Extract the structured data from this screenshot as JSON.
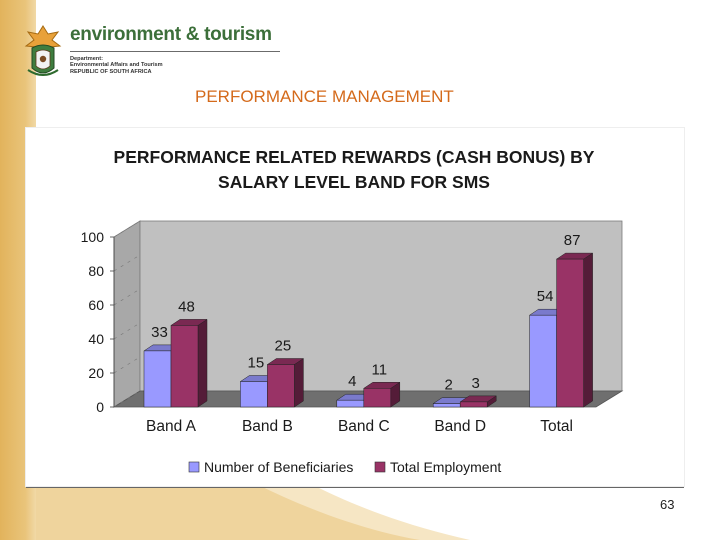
{
  "header": {
    "logo_title": "environment & tourism",
    "logo_lines": [
      "Department:",
      "Environmental Affairs and Tourism",
      "REPUBLIC OF SOUTH AFRICA"
    ],
    "slide_title": "PERFORMANCE MANAGEMENT"
  },
  "page_number": "63",
  "colors": {
    "series_1": "#9999ff",
    "series_2": "#993366",
    "plot_background": "#c0c0c0",
    "title_orange": "#d46a1b",
    "logo_green": "#3c6f3a"
  },
  "chart_data": {
    "type": "bar",
    "style": "3d-clustered",
    "title_lines": [
      "PERFORMANCE RELATED REWARDS (CASH BONUS) BY",
      "SALARY LEVEL BAND FOR SMS"
    ],
    "categories": [
      "Band A",
      "Band B",
      "Band C",
      "Band D",
      "Total"
    ],
    "series": [
      {
        "name": "Number of Beneficiaries",
        "values": [
          33,
          15,
          4,
          2,
          54
        ]
      },
      {
        "name": "Total Employment",
        "values": [
          48,
          25,
          11,
          3,
          87
        ]
      }
    ],
    "y_ticks": [
      "0",
      "20",
      "40",
      "60",
      "80",
      "100"
    ],
    "ylim": [
      0,
      100
    ],
    "legend_position": "bottom",
    "grid": false
  }
}
